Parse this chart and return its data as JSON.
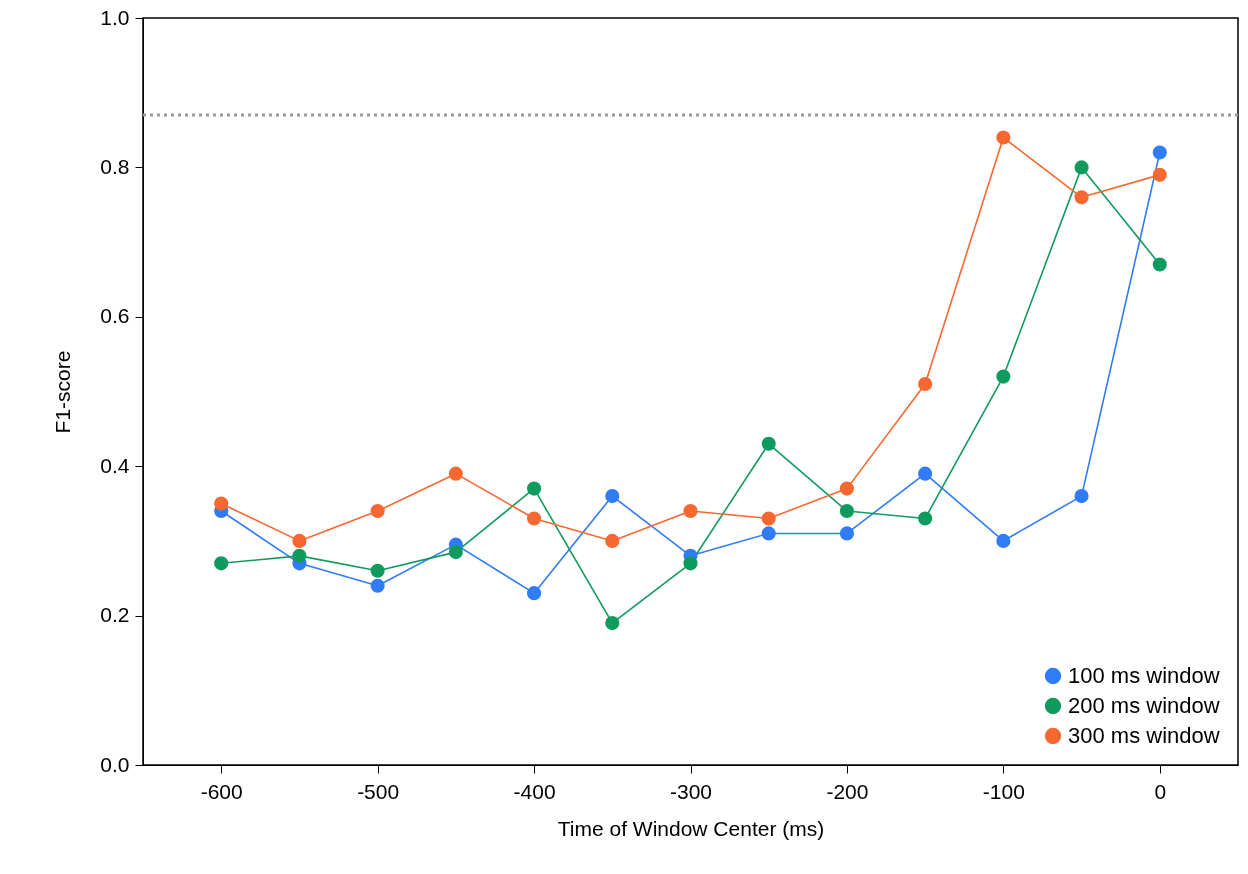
{
  "chart_data": {
    "type": "line",
    "xlabel": "Time of Window Center (ms)",
    "ylabel": "F1-score",
    "x": [
      -600,
      -550,
      -500,
      -450,
      -400,
      -350,
      -300,
      -250,
      -200,
      -150,
      -100,
      -50,
      0
    ],
    "series": [
      {
        "name": "100 ms window",
        "color": "#2f7cf6",
        "values": [
          0.34,
          0.27,
          0.24,
          0.295,
          0.23,
          0.36,
          0.28,
          0.31,
          0.31,
          0.39,
          0.3,
          0.36,
          0.82
        ]
      },
      {
        "name": "200 ms window",
        "color": "#119a5e",
        "values": [
          0.27,
          0.28,
          0.26,
          0.285,
          0.37,
          0.19,
          0.27,
          0.43,
          0.34,
          0.33,
          0.52,
          0.8,
          0.67
        ]
      },
      {
        "name": "300 ms window",
        "color": "#f76830",
        "values": [
          0.35,
          0.3,
          0.34,
          0.39,
          0.33,
          0.3,
          0.34,
          0.33,
          0.37,
          0.51,
          0.84,
          0.76,
          0.79
        ]
      }
    ],
    "xlim": [
      -650,
      50
    ],
    "xticks": [
      -600,
      -500,
      -400,
      -300,
      -200,
      -100,
      0
    ],
    "ylim": [
      0,
      1
    ],
    "yticks": [
      {
        "value": 0,
        "label": "0.0"
      },
      {
        "value": 0.2,
        "label": "0.2"
      },
      {
        "value": 0.4,
        "label": "0.4"
      },
      {
        "value": 0.6,
        "label": "0.6"
      },
      {
        "value": 0.8,
        "label": "0.8"
      },
      {
        "value": 1,
        "label": "1.0"
      }
    ],
    "ref_lines": [
      {
        "axis": "y",
        "value": 0.87,
        "color": "#999999",
        "line_style": "dotted"
      }
    ],
    "grid": false,
    "legend": "bottom right",
    "marker": "circle",
    "line_style": "solid"
  }
}
